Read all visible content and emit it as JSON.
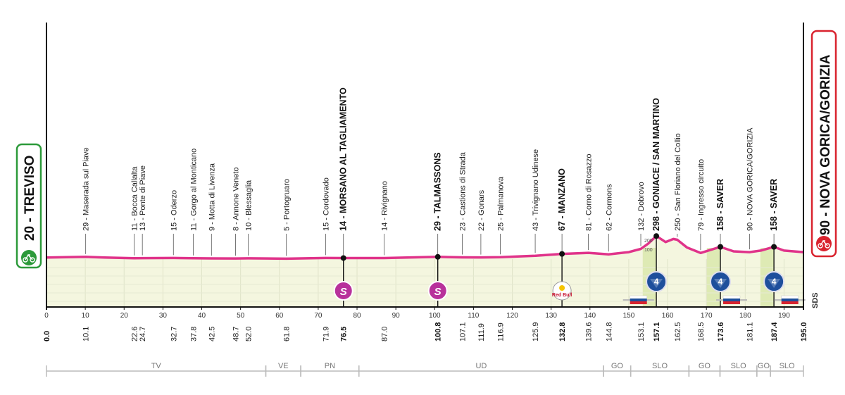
{
  "start": {
    "altitude": "20",
    "name": "TREVISO",
    "label": "20 - TREVISO"
  },
  "finish": {
    "altitude": "90",
    "name": "NOVA GORICA/GORIZIA",
    "label": "90 - NOVA GORICA/GORIZIA"
  },
  "logo_text": "SDS",
  "chart_data": {
    "type": "area",
    "xlabel": "",
    "ylabel": "",
    "xlim": [
      0,
      195
    ],
    "x_ticks": [
      0,
      10,
      20,
      30,
      40,
      50,
      60,
      70,
      80,
      90,
      100,
      110,
      120,
      130,
      140,
      150,
      160,
      170,
      180,
      190
    ],
    "x_tick_labels": [
      "0",
      "10",
      "20",
      "30",
      "40",
      "50",
      "60",
      "70",
      "80",
      "90",
      "100",
      "110",
      "120",
      "130",
      "140",
      "150",
      "160",
      "170",
      "180",
      "190"
    ],
    "profile": [
      {
        "km": 0,
        "alt": 20
      },
      {
        "km": 5,
        "alt": 25
      },
      {
        "km": 10.1,
        "alt": 29
      },
      {
        "km": 15,
        "alt": 20
      },
      {
        "km": 22.6,
        "alt": 11
      },
      {
        "km": 24.7,
        "alt": 13
      },
      {
        "km": 32.7,
        "alt": 15
      },
      {
        "km": 37.8,
        "alt": 11
      },
      {
        "km": 42.5,
        "alt": 9
      },
      {
        "km": 48.7,
        "alt": 8
      },
      {
        "km": 52.0,
        "alt": 10
      },
      {
        "km": 61.8,
        "alt": 5
      },
      {
        "km": 71.9,
        "alt": 15
      },
      {
        "km": 76.5,
        "alt": 14
      },
      {
        "km": 87.0,
        "alt": 14
      },
      {
        "km": 100.8,
        "alt": 29
      },
      {
        "km": 107.1,
        "alt": 23
      },
      {
        "km": 111.9,
        "alt": 22
      },
      {
        "km": 116.9,
        "alt": 25
      },
      {
        "km": 125.9,
        "alt": 43
      },
      {
        "km": 132.8,
        "alt": 67
      },
      {
        "km": 139.6,
        "alt": 81
      },
      {
        "km": 144.8,
        "alt": 62
      },
      {
        "km": 150,
        "alt": 90
      },
      {
        "km": 153.1,
        "alt": 132
      },
      {
        "km": 155,
        "alt": 200
      },
      {
        "km": 157.1,
        "alt": 298
      },
      {
        "km": 159.5,
        "alt": 220
      },
      {
        "km": 161.5,
        "alt": 260
      },
      {
        "km": 162.5,
        "alt": 250
      },
      {
        "km": 165,
        "alt": 150
      },
      {
        "km": 168.5,
        "alt": 79
      },
      {
        "km": 173.6,
        "alt": 158
      },
      {
        "km": 177,
        "alt": 100
      },
      {
        "km": 181.1,
        "alt": 90
      },
      {
        "km": 184,
        "alt": 110
      },
      {
        "km": 187.4,
        "alt": 158
      },
      {
        "km": 190,
        "alt": 110
      },
      {
        "km": 195,
        "alt": 90
      }
    ],
    "waypoints": [
      {
        "km": 10.1,
        "km_label": "10.1",
        "label": "29 - Maserada sul Piave",
        "alt": 29,
        "bold": false
      },
      {
        "km": 22.6,
        "km_label": "22.6",
        "label": "11 - Bocca Callalta",
        "alt": 11,
        "bold": false
      },
      {
        "km": 24.7,
        "km_label": "24.7",
        "label": "13 - Ponte di Piave",
        "alt": 13,
        "bold": false
      },
      {
        "km": 32.7,
        "km_label": "32.7",
        "label": "15 - Oderzo",
        "alt": 15,
        "bold": false
      },
      {
        "km": 37.8,
        "km_label": "37.8",
        "label": "11 - Gorgo al Monticano",
        "alt": 11,
        "bold": false
      },
      {
        "km": 42.5,
        "km_label": "42.5",
        "label": "9 - Motta di Livenza",
        "alt": 9,
        "bold": false
      },
      {
        "km": 48.7,
        "km_label": "48.7",
        "label": "8 - Annone Veneto",
        "alt": 8,
        "bold": false
      },
      {
        "km": 52.0,
        "km_label": "52.0",
        "label": "10 - Blessaglia",
        "alt": 10,
        "bold": false
      },
      {
        "km": 61.8,
        "km_label": "61.8",
        "label": "5 - Portogruaro",
        "alt": 5,
        "bold": false
      },
      {
        "km": 71.9,
        "km_label": "71.9",
        "label": "15 - Cordovado",
        "alt": 15,
        "bold": false
      },
      {
        "km": 76.5,
        "km_label": "76.5",
        "label": "14 - MORSANO AL TAGLIAMENTO",
        "alt": 14,
        "bold": true
      },
      {
        "km": 87.0,
        "km_label": "87.0",
        "label": "14 - Rivignano",
        "alt": 14,
        "bold": false
      },
      {
        "km": 100.8,
        "km_label": "100.8",
        "label": "29 - TALMASSONS",
        "alt": 29,
        "bold": true
      },
      {
        "km": 107.1,
        "km_label": "107.1",
        "label": "23 - Castions di Strada",
        "alt": 23,
        "bold": false
      },
      {
        "km": 111.9,
        "km_label": "111.9",
        "label": "22 - Gonars",
        "alt": 22,
        "bold": false
      },
      {
        "km": 116.9,
        "km_label": "116.9",
        "label": "25 - Palmanova",
        "alt": 25,
        "bold": false
      },
      {
        "km": 125.9,
        "km_label": "125.9",
        "label": "43 - Trivignano Udinese",
        "alt": 43,
        "bold": false
      },
      {
        "km": 132.8,
        "km_label": "132.8",
        "label": "67 - MANZANO",
        "alt": 67,
        "bold": true
      },
      {
        "km": 139.6,
        "km_label": "139.6",
        "label": "81 - Corno di Rosazzo",
        "alt": 81,
        "bold": false
      },
      {
        "km": 144.8,
        "km_label": "144.8",
        "label": "62 - Cormons",
        "alt": 62,
        "bold": false
      },
      {
        "km": 153.1,
        "km_label": "153.1",
        "label": "132 - Dobrovo",
        "alt": 132,
        "bold": false
      },
      {
        "km": 157.1,
        "km_label": "157.1",
        "label": "298 - GONIACE / SAN MARTINO",
        "alt": 298,
        "bold": true
      },
      {
        "km": 162.5,
        "km_label": "162.5",
        "label": "250 - San Floriano del Collio",
        "alt": 250,
        "bold": false
      },
      {
        "km": 168.5,
        "km_label": "168.5",
        "label": "79 - Ingresso circuito",
        "alt": 79,
        "bold": false
      },
      {
        "km": 173.6,
        "km_label": "173.6",
        "label": "158 - SAVER",
        "alt": 158,
        "bold": true
      },
      {
        "km": 181.1,
        "km_label": "181.1",
        "label": "90 - NOVA GORICA/GORIZIA",
        "alt": 90,
        "bold": false
      },
      {
        "km": 187.4,
        "km_label": "187.4",
        "label": "158 - SAVER",
        "alt": 158,
        "bold": true
      }
    ],
    "start_km_label": "0.0",
    "finish_km_label": "195.0",
    "sprints": [
      {
        "km": 76.5,
        "icon": "S"
      },
      {
        "km": 100.8,
        "icon": "S"
      }
    ],
    "bonus": [
      {
        "km": 132.8,
        "label": "Red Bull"
      }
    ],
    "koms": [
      {
        "km": 157.1,
        "category": "4"
      },
      {
        "km": 173.6,
        "category": "4"
      },
      {
        "km": 187.4,
        "category": "4"
      }
    ],
    "altitude_marks": [
      "100",
      "200"
    ],
    "regions": [
      {
        "from": 0,
        "to": 65,
        "label": "TV"
      },
      {
        "from": 65,
        "to": 65,
        "label": ""
      },
      {
        "from": 65,
        "to": 65,
        "label": ""
      }
    ],
    "region_bands": [
      {
        "from": 0,
        "to": 56.5,
        "label": "TV"
      },
      {
        "from": 56.5,
        "to": 65.5,
        "label": "VE"
      },
      {
        "from": 65.5,
        "to": 80.5,
        "label": "PN"
      },
      {
        "from": 80.5,
        "to": 143.5,
        "label": "UD"
      },
      {
        "from": 143.5,
        "to": 150.5,
        "label": "GO"
      },
      {
        "from": 150.5,
        "to": 165.5,
        "label": "SLO"
      },
      {
        "from": 165.5,
        "to": 173.5,
        "label": "GO"
      },
      {
        "from": 173.5,
        "to": 183,
        "label": "SLO"
      },
      {
        "from": 183,
        "to": 186.5,
        "label": "GO"
      },
      {
        "from": 186.5,
        "to": 195,
        "label": "SLO"
      }
    ]
  }
}
